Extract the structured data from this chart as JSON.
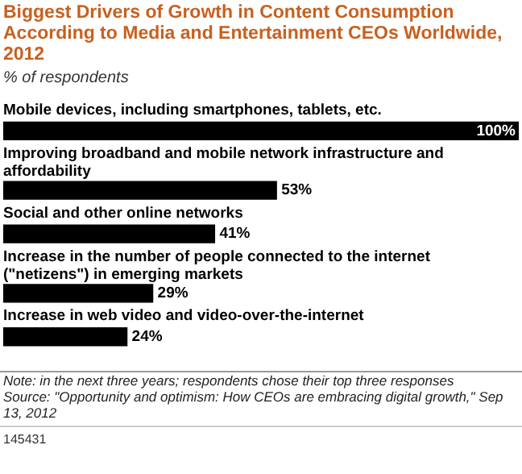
{
  "chart_data": {
    "type": "bar",
    "orientation": "horizontal",
    "title": "Biggest Drivers of Growth in Content Consumption According to Media and Entertainment CEOs Worldwide, 2012",
    "subtitle": "% of respondents",
    "categories": [
      "Mobile devices, including smartphones, tablets, etc.",
      "Improving broadband and mobile network infrastructure and affordability",
      "Social and other online networks",
      "Increase in the number of people connected to the internet (\"netizens\") in emerging markets",
      "Increase in web video and video-over-the-internet"
    ],
    "values": [
      100,
      53,
      41,
      29,
      24
    ],
    "value_labels": [
      "100%",
      "53%",
      "41%",
      "29%",
      "24%"
    ],
    "color": "#000000",
    "xlim": [
      0,
      100
    ],
    "annotations": [
      "Note: in the next three years; respondents chose their top three responses",
      "Source: \"Opportunity and optimism: How CEOs are embracing digital growth,\" Sep 13, 2012",
      "145431"
    ]
  }
}
